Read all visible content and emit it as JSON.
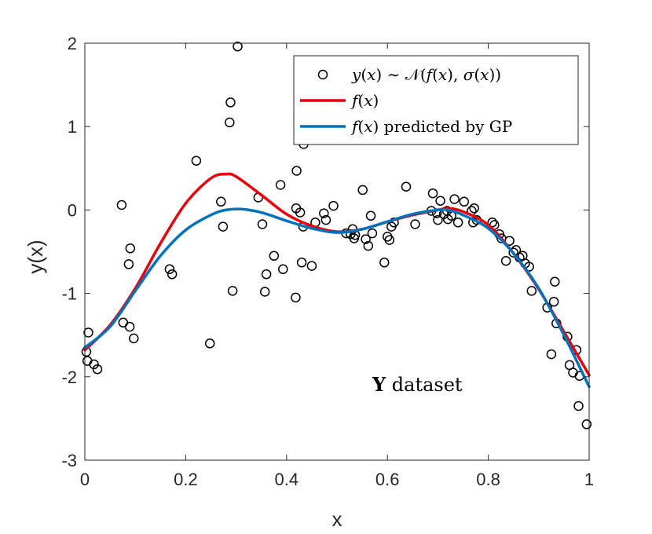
{
  "chart_data": {
    "type": "scatter",
    "xlabel": "x",
    "ylabel": "y(x)",
    "xlim": [
      0,
      1
    ],
    "ylim": [
      -3,
      2
    ],
    "xticks": [
      "0",
      "0.2",
      "0.4",
      "0.6",
      "0.8",
      "1"
    ],
    "yticks": [
      "-3",
      "-2",
      "-1",
      "0",
      "1",
      "2"
    ],
    "grid": false,
    "legend_position": "top-right",
    "legend": {
      "scatter": {
        "pre": "y",
        "mid1": "(",
        "x": "x",
        "mid2": ") ∼ 𝒩(",
        "f": "f",
        "mid3": "(",
        "x2": "x",
        "mid4": "), ",
        "sigma": "σ",
        "mid5": "(",
        "x3": "x",
        "end": "))"
      },
      "true_label": {
        "f": "f",
        "rest": "(",
        "x": "x",
        "end": ")"
      },
      "gp_label": {
        "f": "f",
        "rest": "(",
        "x": "x",
        "end": ") predicted by GP"
      }
    },
    "annotation": {
      "bold": "Y",
      "text": " dataset"
    },
    "colors": {
      "true": "#e8000b",
      "gp": "#0072bd",
      "points": "#000000"
    },
    "series": [
      {
        "kind": "points",
        "points": [
          [
            0.003,
            -1.7
          ],
          [
            0.005,
            -1.81
          ],
          [
            0.007,
            -1.47
          ],
          [
            0.018,
            -1.85
          ],
          [
            0.025,
            -1.91
          ],
          [
            0.073,
            0.06
          ],
          [
            0.076,
            -1.35
          ],
          [
            0.087,
            -0.65
          ],
          [
            0.09,
            -0.46
          ],
          [
            0.089,
            -1.4
          ],
          [
            0.097,
            -1.54
          ],
          [
            0.168,
            -0.71
          ],
          [
            0.173,
            -0.77
          ],
          [
            0.221,
            0.59
          ],
          [
            0.248,
            -1.6
          ],
          [
            0.27,
            0.1
          ],
          [
            0.274,
            -0.2
          ],
          [
            0.287,
            1.05
          ],
          [
            0.289,
            1.29
          ],
          [
            0.293,
            -0.97
          ],
          [
            0.303,
            1.96
          ],
          [
            0.344,
            0.15
          ],
          [
            0.352,
            -0.17
          ],
          [
            0.357,
            -0.98
          ],
          [
            0.36,
            -0.77
          ],
          [
            0.375,
            -0.55
          ],
          [
            0.388,
            0.3
          ],
          [
            0.393,
            -0.71
          ],
          [
            0.418,
            -1.05
          ],
          [
            0.419,
            0.02
          ],
          [
            0.42,
            0.47
          ],
          [
            0.427,
            -0.03
          ],
          [
            0.43,
            -0.63
          ],
          [
            0.433,
            -0.2
          ],
          [
            0.434,
            0.79
          ],
          [
            0.45,
            -0.67
          ],
          [
            0.457,
            -0.15
          ],
          [
            0.474,
            -0.04
          ],
          [
            0.478,
            -0.12
          ],
          [
            0.493,
            0.05
          ],
          [
            0.518,
            -0.28
          ],
          [
            0.527,
            -0.29
          ],
          [
            0.531,
            -0.23
          ],
          [
            0.534,
            -0.34
          ],
          [
            0.536,
            -0.3
          ],
          [
            0.551,
            0.24
          ],
          [
            0.557,
            -0.35
          ],
          [
            0.562,
            -0.43
          ],
          [
            0.567,
            -0.07
          ],
          [
            0.57,
            -0.28
          ],
          [
            0.594,
            -0.63
          ],
          [
            0.6,
            -0.32
          ],
          [
            0.604,
            -0.36
          ],
          [
            0.608,
            -0.2
          ],
          [
            0.613,
            -0.15
          ],
          [
            0.637,
            0.28
          ],
          [
            0.655,
            -0.17
          ],
          [
            0.687,
            -0.01
          ],
          [
            0.69,
            0.2
          ],
          [
            0.698,
            -0.04
          ],
          [
            0.7,
            -0.12
          ],
          [
            0.705,
            0.11
          ],
          [
            0.712,
            -0.05
          ],
          [
            0.718,
            -0.01
          ],
          [
            0.72,
            -0.11
          ],
          [
            0.727,
            -0.07
          ],
          [
            0.733,
            0.13
          ],
          [
            0.74,
            -0.15
          ],
          [
            0.752,
            0.1
          ],
          [
            0.767,
            -0.01
          ],
          [
            0.77,
            -0.15
          ],
          [
            0.772,
            0.02
          ],
          [
            0.777,
            -0.12
          ],
          [
            0.808,
            -0.15
          ],
          [
            0.812,
            -0.18
          ],
          [
            0.822,
            -0.29
          ],
          [
            0.826,
            -0.34
          ],
          [
            0.835,
            -0.61
          ],
          [
            0.842,
            -0.37
          ],
          [
            0.85,
            -0.51
          ],
          [
            0.855,
            -0.48
          ],
          [
            0.862,
            -0.57
          ],
          [
            0.868,
            -0.55
          ],
          [
            0.873,
            -0.64
          ],
          [
            0.881,
            -0.68
          ],
          [
            0.886,
            -0.97
          ],
          [
            0.917,
            -1.17
          ],
          [
            0.925,
            -1.73
          ],
          [
            0.93,
            -1.1
          ],
          [
            0.932,
            -0.86
          ],
          [
            0.935,
            -1.36
          ],
          [
            0.957,
            -1.52
          ],
          [
            0.961,
            -1.86
          ],
          [
            0.968,
            -1.95
          ],
          [
            0.975,
            -1.68
          ],
          [
            0.979,
            -2.35
          ],
          [
            0.981,
            -1.99
          ],
          [
            0.995,
            -2.57
          ]
        ]
      },
      {
        "kind": "line",
        "role": "true",
        "points": [
          [
            0,
            -1.68
          ],
          [
            0.05,
            -1.38
          ],
          [
            0.1,
            -0.94
          ],
          [
            0.15,
            -0.4
          ],
          [
            0.2,
            0.08
          ],
          [
            0.25,
            0.38
          ],
          [
            0.28,
            0.43
          ],
          [
            0.3,
            0.4
          ],
          [
            0.35,
            0.18
          ],
          [
            0.4,
            -0.05
          ],
          [
            0.45,
            -0.19
          ],
          [
            0.5,
            -0.26
          ],
          [
            0.55,
            -0.23
          ],
          [
            0.6,
            -0.14
          ],
          [
            0.65,
            -0.06
          ],
          [
            0.7,
            0.0
          ],
          [
            0.72,
            0.02
          ],
          [
            0.75,
            -0.02
          ],
          [
            0.8,
            -0.18
          ],
          [
            0.85,
            -0.52
          ],
          [
            0.9,
            -0.95
          ],
          [
            0.95,
            -1.46
          ],
          [
            1.0,
            -1.98
          ]
        ]
      },
      {
        "kind": "line",
        "role": "gp",
        "points": [
          [
            0,
            -1.65
          ],
          [
            0.05,
            -1.4
          ],
          [
            0.1,
            -0.97
          ],
          [
            0.15,
            -0.55
          ],
          [
            0.2,
            -0.24
          ],
          [
            0.25,
            -0.06
          ],
          [
            0.28,
            0.0
          ],
          [
            0.31,
            0.01
          ],
          [
            0.35,
            -0.03
          ],
          [
            0.4,
            -0.13
          ],
          [
            0.45,
            -0.22
          ],
          [
            0.5,
            -0.27
          ],
          [
            0.55,
            -0.23
          ],
          [
            0.6,
            -0.14
          ],
          [
            0.65,
            -0.05
          ],
          [
            0.7,
            0.0
          ],
          [
            0.72,
            0.0
          ],
          [
            0.75,
            -0.06
          ],
          [
            0.8,
            -0.22
          ],
          [
            0.85,
            -0.52
          ],
          [
            0.9,
            -0.94
          ],
          [
            0.95,
            -1.5
          ],
          [
            1.0,
            -2.12
          ]
        ]
      }
    ]
  }
}
